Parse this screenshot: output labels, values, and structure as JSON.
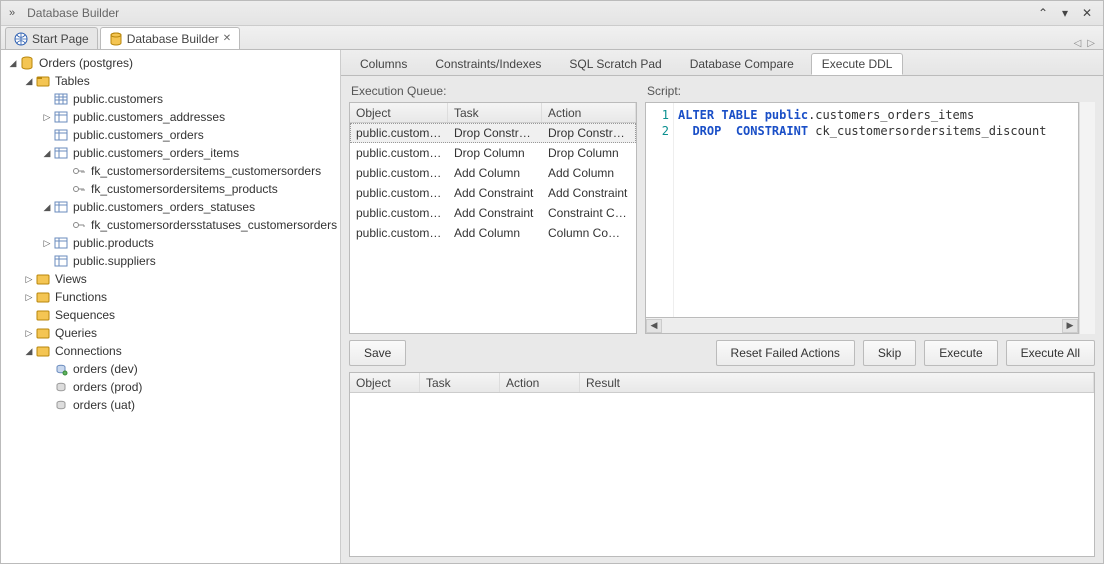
{
  "window": {
    "title": "Database Builder"
  },
  "tabs": {
    "start": "Start Page",
    "builder": "Database Builder"
  },
  "tree": {
    "root": "Orders (postgres)",
    "tables": "Tables",
    "t0": "public.customers",
    "t1": "public.customers_addresses",
    "t2": "public.customers_orders",
    "t3": "public.customers_orders_items",
    "t3a": "fk_customersordersitems_customersorders",
    "t3b": "fk_customersordersitems_products",
    "t4": "public.customers_orders_statuses",
    "t4a": "fk_customersordersstatuses_customersorders",
    "t5": "public.products",
    "t6": "public.suppliers",
    "views": "Views",
    "functions": "Functions",
    "sequences": "Sequences",
    "queries": "Queries",
    "connections": "Connections",
    "c0": "orders (dev)",
    "c1": "orders (prod)",
    "c2": "orders (uat)"
  },
  "subtabs": {
    "columns": "Columns",
    "constraints": "Constraints/Indexes",
    "scratch": "SQL Scratch Pad",
    "compare": "Database Compare",
    "ddl": "Execute DDL"
  },
  "queue": {
    "title": "Execution Queue:",
    "headers": {
      "object": "Object",
      "task": "Task",
      "action": "Action"
    },
    "rows": [
      {
        "object": "public.customer...",
        "task": "Drop Constraint",
        "action": "Drop Constraint"
      },
      {
        "object": "public.customer...",
        "task": "Drop Column",
        "action": "Drop Column"
      },
      {
        "object": "public.customer...",
        "task": "Add Column",
        "action": "Add Column"
      },
      {
        "object": "public.customer...",
        "task": "Add Constraint",
        "action": "Add Constraint"
      },
      {
        "object": "public.customer...",
        "task": "Add Constraint",
        "action": "Constraint Com..."
      },
      {
        "object": "public.customer...",
        "task": "Add Column",
        "action": "Column Comm..."
      }
    ]
  },
  "script": {
    "title": "Script:",
    "line1_kw1": "ALTER TABLE ",
    "line1_id": "public",
    "line1_rest": ".customers_orders_items",
    "line2_kw1": "DROP  ",
    "line2_kw2": "CONSTRAINT ",
    "line2_rest": "ck_customersordersitems_discount"
  },
  "buttons": {
    "save": "Save",
    "reset": "Reset Failed Actions",
    "skip": "Skip",
    "execute": "Execute",
    "executeall": "Execute All"
  },
  "results": {
    "headers": {
      "object": "Object",
      "task": "Task",
      "action": "Action",
      "result": "Result"
    }
  }
}
